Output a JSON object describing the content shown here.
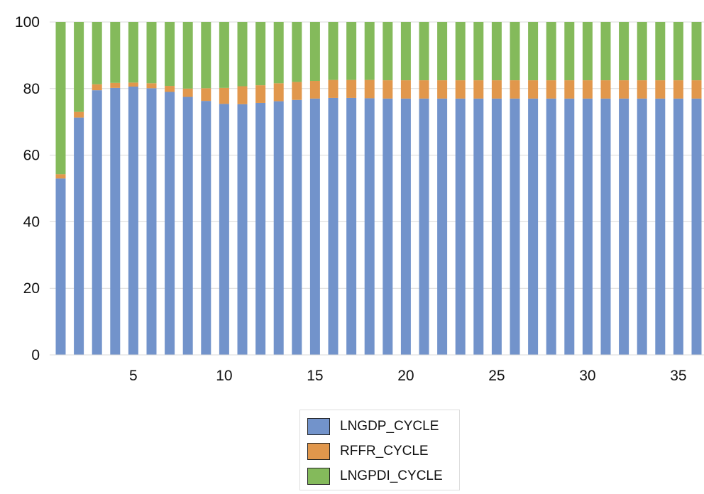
{
  "chart_data": {
    "type": "bar",
    "stacked": true,
    "grid": true,
    "legend_position": "bottom",
    "ylim": [
      0,
      100
    ],
    "yticks": [
      0,
      20,
      40,
      60,
      80,
      100
    ],
    "xticks": [
      5,
      10,
      15,
      20,
      25,
      30,
      35
    ],
    "x": [
      1,
      2,
      3,
      4,
      5,
      6,
      7,
      8,
      9,
      10,
      11,
      12,
      13,
      14,
      15,
      16,
      17,
      18,
      19,
      20,
      21,
      22,
      23,
      24,
      25,
      26,
      27,
      28,
      29,
      30,
      31,
      32,
      33,
      34,
      35,
      36
    ],
    "series": [
      {
        "name": "LNGDP_CYCLE",
        "color": "#7293cb",
        "values": [
          53,
          71.3,
          79.5,
          80.2,
          80.6,
          80.1,
          79,
          77.5,
          76.3,
          75.4,
          75.3,
          75.7,
          76.2,
          76.6,
          77,
          77.2,
          77.2,
          77.1,
          77,
          77,
          77,
          77,
          77,
          77,
          77,
          77,
          77,
          77,
          77,
          77,
          77,
          77,
          77,
          77,
          77,
          77
        ]
      },
      {
        "name": "RFFR_CYCLE",
        "color": "#e1974c",
        "values": [
          1.3,
          1.7,
          1.8,
          1.5,
          1.2,
          1.5,
          1.8,
          2.5,
          3.8,
          4.8,
          5.4,
          5.3,
          5.4,
          5.4,
          5.3,
          5.4,
          5.4,
          5.5,
          5.5,
          5.5,
          5.5,
          5.5,
          5.5,
          5.5,
          5.5,
          5.5,
          5.5,
          5.5,
          5.5,
          5.5,
          5.5,
          5.5,
          5.5,
          5.5,
          5.5,
          5.5
        ]
      },
      {
        "name": "LNGPDI_CYCLE",
        "color": "#84ba5b",
        "values": [
          45.7,
          27,
          18.7,
          18.3,
          18.2,
          18.4,
          19.2,
          20,
          19.9,
          19.8,
          19.3,
          19,
          18.4,
          18,
          17.7,
          17.4,
          17.4,
          17.4,
          17.5,
          17.5,
          17.5,
          17.5,
          17.5,
          17.5,
          17.5,
          17.5,
          17.5,
          17.5,
          17.5,
          17.5,
          17.5,
          17.5,
          17.5,
          17.5,
          17.5,
          17.5
        ]
      }
    ]
  }
}
